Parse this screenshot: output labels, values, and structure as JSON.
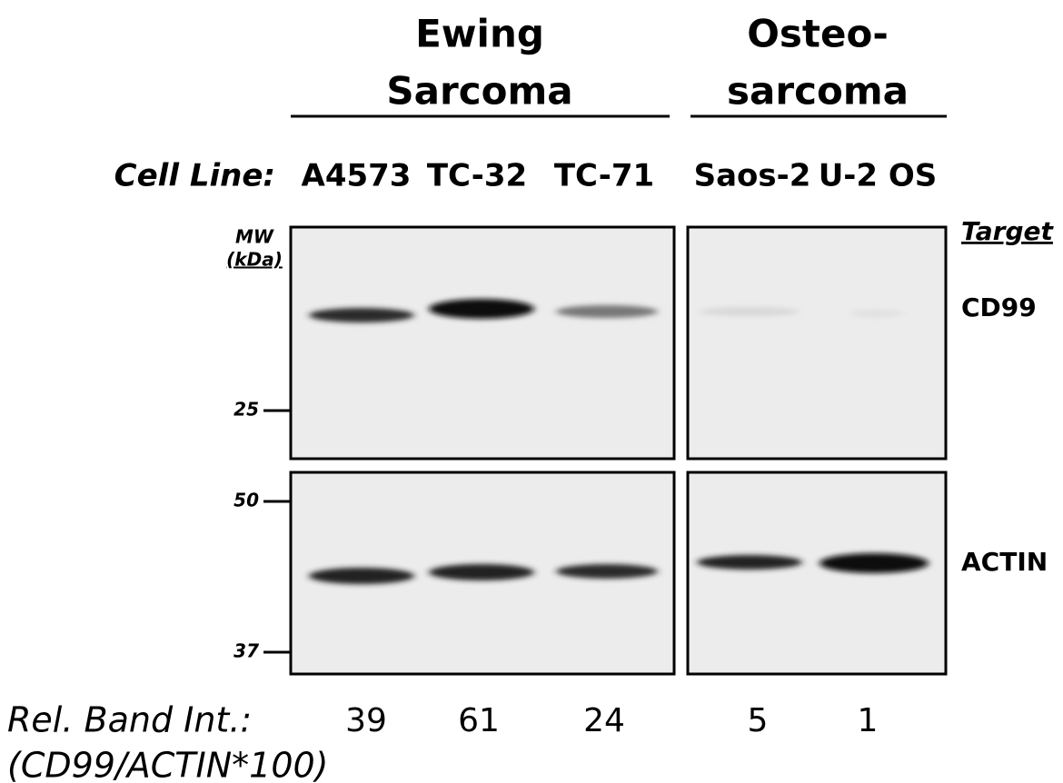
{
  "header": {
    "groups": [
      {
        "line1": "Ewing",
        "line2": "Sarcoma"
      },
      {
        "line1": "Osteo-",
        "line2": "sarcoma"
      }
    ]
  },
  "cell_line_label": "Cell Line:",
  "cell_lines": [
    "A4573",
    "TC-32",
    "TC-71",
    "Saos-2",
    "U-2 OS"
  ],
  "mw": {
    "label_line1": "MW",
    "label_line2": "(kDa)",
    "markers": [
      25,
      50,
      37
    ]
  },
  "targets": {
    "header": "Target",
    "rows": [
      "CD99",
      "ACTIN"
    ]
  },
  "rel_band_int": {
    "label": "Rel. Band Int.:",
    "formula": "(CD99/ACTIN*100)",
    "values": [
      39,
      61,
      24,
      5,
      1
    ]
  }
}
